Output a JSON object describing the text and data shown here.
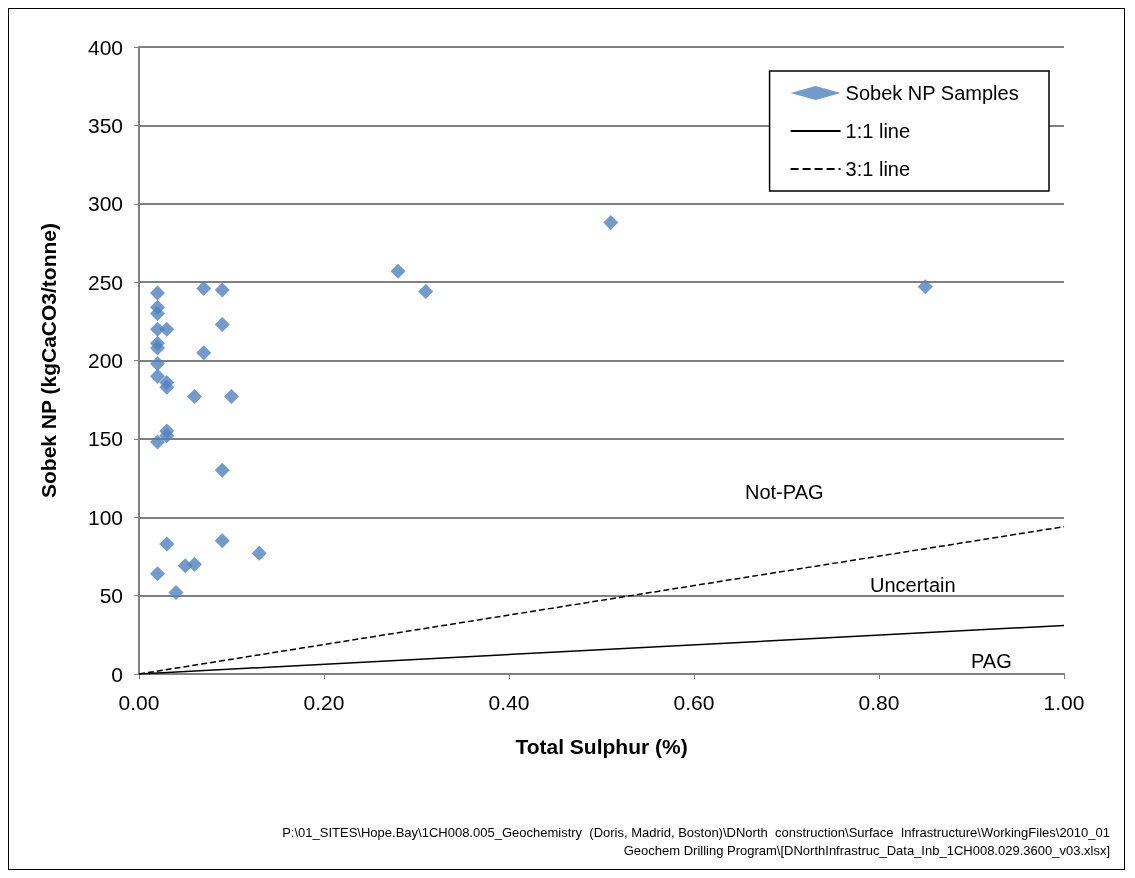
{
  "chart_data": {
    "type": "scatter",
    "xlabel": "Total Sulphur (%)",
    "ylabel": "Sobek NP (kgCaCO3/tonne)",
    "xlim": [
      0,
      1
    ],
    "xticks": [
      {
        "value": 0,
        "label": "0.00"
      },
      {
        "value": 0.2,
        "label": "0.20"
      },
      {
        "value": 0.4,
        "label": "0.40"
      },
      {
        "value": 0.6,
        "label": "0.60"
      },
      {
        "value": 0.8,
        "label": "0.80"
      },
      {
        "value": 1,
        "label": "1.00"
      }
    ],
    "ylim": [
      0,
      400
    ],
    "yticks": [
      0,
      50,
      100,
      150,
      200,
      250,
      300,
      350,
      400
    ],
    "grid": "y",
    "legend": "top right",
    "series": [
      {
        "name": "Sobek NP Samples",
        "marker": "diamond",
        "color": "#4f81bd",
        "x": [
          0.02,
          0.02,
          0.02,
          0.02,
          0.02,
          0.02,
          0.02,
          0.02,
          0.02,
          0.02,
          0.03,
          0.03,
          0.03,
          0.03,
          0.03,
          0.03,
          0.04,
          0.05,
          0.06,
          0.06,
          0.07,
          0.07,
          0.09,
          0.09,
          0.09,
          0.09,
          0.1,
          0.13,
          0.28,
          0.31,
          0.51,
          0.85
        ],
        "values": [
          243,
          234,
          230,
          220,
          211,
          208,
          198,
          190,
          148,
          64,
          220,
          186,
          183,
          155,
          152,
          83,
          52,
          69,
          177,
          70,
          246,
          205,
          245,
          223,
          130,
          85,
          177,
          77,
          257,
          244,
          288,
          247
        ]
      },
      {
        "name": "1:1 line",
        "type": "line",
        "marker": "none",
        "line_style": "solid",
        "color": "#000000",
        "x": [
          0,
          1
        ],
        "values": [
          0,
          31
        ]
      },
      {
        "name": "3:1 line",
        "type": "line",
        "marker": "none",
        "line_style": "dashed",
        "color": "#000000",
        "x": [
          0,
          1
        ],
        "values": [
          0,
          94
        ]
      }
    ],
    "annotations": [
      "Not-PAG",
      "Uncertain",
      "PAG",
      "P:\\01_SITES\\Hope.Bay\\1CH008.005_Geochemistry  (Doris, Madrid, Boston)\\DNorth  construction\\Surface  Infrastructure\\WorkingFiles\\2010_01",
      "Geochem Drilling Program\\[DNorthInfrastruc_Data_Inb_1CH008.029.3600_v03.xlsx]"
    ]
  }
}
